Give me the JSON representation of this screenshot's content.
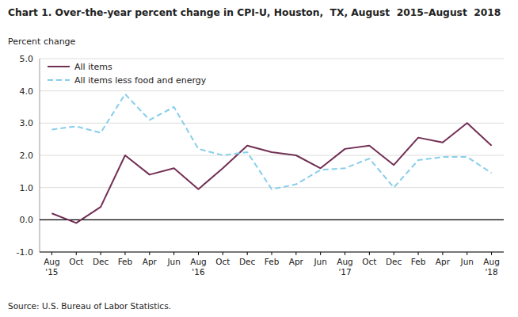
{
  "chart_data": {
    "type": "line",
    "title": "Chart 1. Over-the-year percent change in CPI-U, Houston,  TX, August  2015–August  2018",
    "ylabel": "Percent change",
    "source": "Source: U.S. Bureau of Labor Statistics.",
    "categories": [
      "Aug\n'15",
      "Oct",
      "Dec",
      "Feb",
      "Apr",
      "Jun",
      "Aug\n'16",
      "Oct",
      "Dec",
      "Feb",
      "Apr",
      "Jun",
      "Aug\n'17",
      "Oct",
      "Dec",
      "Feb",
      "Apr",
      "Jun",
      "Aug\n'18"
    ],
    "series": [
      {
        "name": "All items",
        "color": "#722F54",
        "line_style": "solid",
        "values": [
          0.2,
          -0.1,
          0.4,
          2.0,
          1.4,
          1.6,
          0.95,
          1.6,
          2.3,
          2.1,
          2.0,
          1.6,
          2.2,
          2.3,
          1.7,
          2.55,
          2.4,
          3.0,
          2.3
        ]
      },
      {
        "name": "All items less food and energy",
        "color": "#87CEEB",
        "line_style": "dashed",
        "values": [
          2.8,
          2.9,
          2.7,
          3.9,
          3.1,
          3.5,
          2.2,
          2.0,
          2.1,
          0.95,
          1.1,
          1.55,
          1.6,
          1.9,
          1.0,
          1.85,
          1.95,
          1.95,
          1.45
        ]
      }
    ],
    "ylim": [
      -1.0,
      5.0
    ],
    "yticks": [
      {
        "value": -1.0,
        "label": "-1.0"
      },
      {
        "value": 0.0,
        "label": "0.0"
      },
      {
        "value": 1.0,
        "label": "1.0"
      },
      {
        "value": 2.0,
        "label": "2.0"
      },
      {
        "value": 3.0,
        "label": "3.0"
      },
      {
        "value": 4.0,
        "label": "4.0"
      },
      {
        "value": 5.0,
        "label": "5.0"
      }
    ],
    "grid": true,
    "legend": "upper left"
  }
}
